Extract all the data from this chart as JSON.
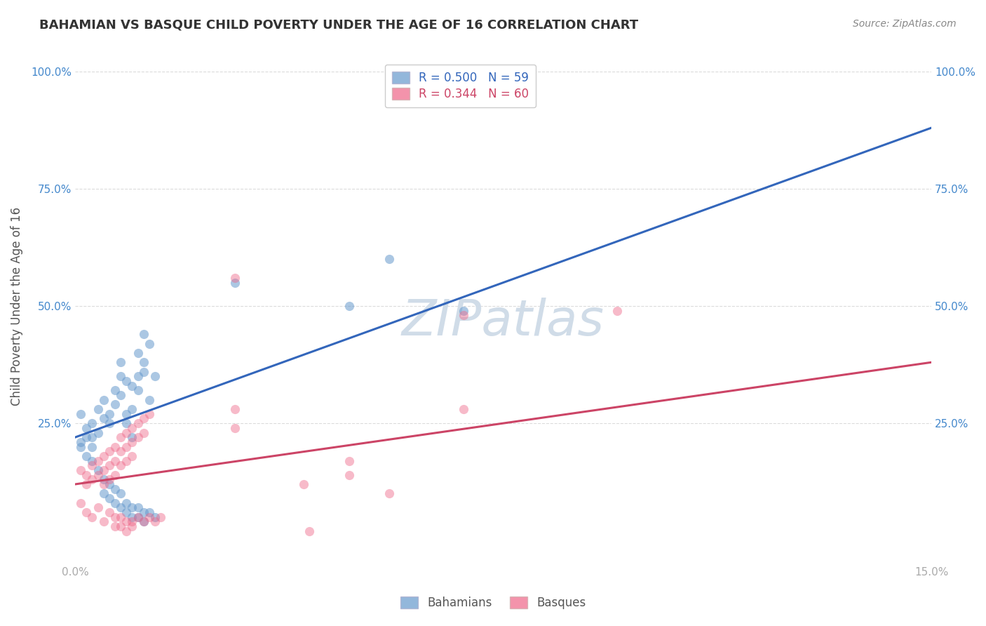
{
  "title": "BAHAMIAN VS BASQUE CHILD POVERTY UNDER THE AGE OF 16 CORRELATION CHART",
  "source": "Source: ZipAtlas.com",
  "ylabel": "Child Poverty Under the Age of 16",
  "xlim": [
    0,
    0.15
  ],
  "ylim": [
    -0.05,
    1.05
  ],
  "ytick_labels": [
    "100.0%",
    "75.0%",
    "50.0%",
    "25.0%"
  ],
  "ytick_vals": [
    1.0,
    0.75,
    0.5,
    0.25
  ],
  "background_color": "#ffffff",
  "grid_color": "#cccccc",
  "legend_label1": "Bahamians",
  "legend_label2": "Basques",
  "R1": "0.500",
  "N1": "59",
  "R2": "0.344",
  "N2": "60",
  "blue_color": "#6699cc",
  "pink_color": "#ee6688",
  "blue_line_color": "#3366bb",
  "pink_line_color": "#cc4466",
  "blue_scatter": [
    [
      0.001,
      0.27
    ],
    [
      0.002,
      0.24
    ],
    [
      0.003,
      0.22
    ],
    [
      0.003,
      0.25
    ],
    [
      0.004,
      0.28
    ],
    [
      0.004,
      0.23
    ],
    [
      0.005,
      0.3
    ],
    [
      0.005,
      0.26
    ],
    [
      0.006,
      0.25
    ],
    [
      0.006,
      0.27
    ],
    [
      0.007,
      0.32
    ],
    [
      0.007,
      0.29
    ],
    [
      0.008,
      0.35
    ],
    [
      0.008,
      0.31
    ],
    [
      0.008,
      0.38
    ],
    [
      0.009,
      0.34
    ],
    [
      0.009,
      0.27
    ],
    [
      0.009,
      0.25
    ],
    [
      0.01,
      0.33
    ],
    [
      0.01,
      0.28
    ],
    [
      0.01,
      0.22
    ],
    [
      0.011,
      0.35
    ],
    [
      0.011,
      0.4
    ],
    [
      0.011,
      0.32
    ],
    [
      0.012,
      0.38
    ],
    [
      0.012,
      0.44
    ],
    [
      0.012,
      0.36
    ],
    [
      0.013,
      0.42
    ],
    [
      0.013,
      0.3
    ],
    [
      0.014,
      0.35
    ],
    [
      0.001,
      0.2
    ],
    [
      0.002,
      0.18
    ],
    [
      0.003,
      0.17
    ],
    [
      0.004,
      0.15
    ],
    [
      0.005,
      0.13
    ],
    [
      0.005,
      0.1
    ],
    [
      0.006,
      0.12
    ],
    [
      0.006,
      0.09
    ],
    [
      0.007,
      0.11
    ],
    [
      0.007,
      0.08
    ],
    [
      0.008,
      0.1
    ],
    [
      0.008,
      0.07
    ],
    [
      0.009,
      0.08
    ],
    [
      0.009,
      0.06
    ],
    [
      0.01,
      0.07
    ],
    [
      0.01,
      0.05
    ],
    [
      0.011,
      0.07
    ],
    [
      0.011,
      0.05
    ],
    [
      0.012,
      0.06
    ],
    [
      0.012,
      0.04
    ],
    [
      0.013,
      0.06
    ],
    [
      0.014,
      0.05
    ],
    [
      0.068,
      0.49
    ],
    [
      0.048,
      0.5
    ],
    [
      0.001,
      0.21
    ],
    [
      0.002,
      0.22
    ],
    [
      0.003,
      0.2
    ],
    [
      0.055,
      0.6
    ],
    [
      0.028,
      0.55
    ]
  ],
  "pink_scatter": [
    [
      0.001,
      0.15
    ],
    [
      0.002,
      0.14
    ],
    [
      0.002,
      0.12
    ],
    [
      0.003,
      0.16
    ],
    [
      0.003,
      0.13
    ],
    [
      0.004,
      0.17
    ],
    [
      0.004,
      0.14
    ],
    [
      0.005,
      0.18
    ],
    [
      0.005,
      0.15
    ],
    [
      0.005,
      0.12
    ],
    [
      0.006,
      0.19
    ],
    [
      0.006,
      0.16
    ],
    [
      0.006,
      0.13
    ],
    [
      0.007,
      0.2
    ],
    [
      0.007,
      0.17
    ],
    [
      0.007,
      0.14
    ],
    [
      0.008,
      0.22
    ],
    [
      0.008,
      0.19
    ],
    [
      0.008,
      0.16
    ],
    [
      0.009,
      0.23
    ],
    [
      0.009,
      0.2
    ],
    [
      0.009,
      0.17
    ],
    [
      0.01,
      0.24
    ],
    [
      0.01,
      0.21
    ],
    [
      0.01,
      0.18
    ],
    [
      0.011,
      0.25
    ],
    [
      0.011,
      0.22
    ],
    [
      0.012,
      0.26
    ],
    [
      0.012,
      0.23
    ],
    [
      0.013,
      0.27
    ],
    [
      0.001,
      0.08
    ],
    [
      0.002,
      0.06
    ],
    [
      0.003,
      0.05
    ],
    [
      0.004,
      0.07
    ],
    [
      0.005,
      0.04
    ],
    [
      0.006,
      0.06
    ],
    [
      0.007,
      0.05
    ],
    [
      0.007,
      0.03
    ],
    [
      0.008,
      0.05
    ],
    [
      0.008,
      0.03
    ],
    [
      0.009,
      0.04
    ],
    [
      0.009,
      0.02
    ],
    [
      0.01,
      0.04
    ],
    [
      0.01,
      0.03
    ],
    [
      0.011,
      0.05
    ],
    [
      0.012,
      0.04
    ],
    [
      0.013,
      0.05
    ],
    [
      0.014,
      0.04
    ],
    [
      0.015,
      0.05
    ],
    [
      0.028,
      0.56
    ],
    [
      0.04,
      0.12
    ],
    [
      0.028,
      0.24
    ],
    [
      0.048,
      0.14
    ],
    [
      0.068,
      0.48
    ],
    [
      0.095,
      0.49
    ],
    [
      0.041,
      0.02
    ],
    [
      0.055,
      0.1
    ],
    [
      0.068,
      0.28
    ],
    [
      0.048,
      0.17
    ],
    [
      0.028,
      0.28
    ]
  ],
  "blue_line_x": [
    0.0,
    0.15
  ],
  "blue_line_y": [
    0.22,
    0.88
  ],
  "pink_line_x": [
    0.0,
    0.15
  ],
  "pink_line_y": [
    0.12,
    0.38
  ],
  "watermark": "ZIPatlas",
  "watermark_color": "#d0dce8",
  "watermark_fontsize": 52
}
